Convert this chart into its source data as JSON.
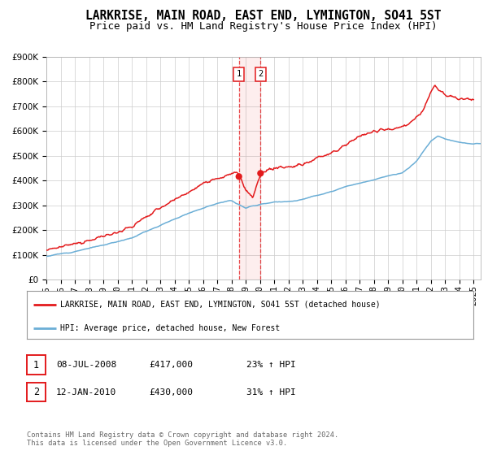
{
  "title": "LARKRISE, MAIN ROAD, EAST END, LYMINGTON, SO41 5ST",
  "subtitle": "Price paid vs. HM Land Registry's House Price Index (HPI)",
  "ylim": [
    0,
    900000
  ],
  "xlim": [
    1995.0,
    2025.5
  ],
  "yticks": [
    0,
    100000,
    200000,
    300000,
    400000,
    500000,
    600000,
    700000,
    800000,
    900000
  ],
  "ytick_labels": [
    "£0",
    "£100K",
    "£200K",
    "£300K",
    "£400K",
    "£500K",
    "£600K",
    "£700K",
    "£800K",
    "£900K"
  ],
  "xticks": [
    1995,
    1996,
    1997,
    1998,
    1999,
    2000,
    2001,
    2002,
    2003,
    2004,
    2005,
    2006,
    2007,
    2008,
    2009,
    2010,
    2011,
    2012,
    2013,
    2014,
    2015,
    2016,
    2017,
    2018,
    2019,
    2020,
    2021,
    2022,
    2023,
    2024,
    2025
  ],
  "hpi_color": "#6baed6",
  "price_color": "#e31a1c",
  "point1_x": 2008.52,
  "point1_y": 417000,
  "point2_x": 2010.04,
  "point2_y": 430000,
  "vline1_x": 2008.52,
  "vline2_x": 2010.04,
  "shade_alpha": 0.07,
  "legend_label_price": "LARKRISE, MAIN ROAD, EAST END, LYMINGTON, SO41 5ST (detached house)",
  "legend_label_hpi": "HPI: Average price, detached house, New Forest",
  "table_rows": [
    {
      "num": "1",
      "date": "08-JUL-2008",
      "price": "£417,000",
      "hpi": "23% ↑ HPI"
    },
    {
      "num": "2",
      "date": "12-JAN-2010",
      "price": "£430,000",
      "hpi": "31% ↑ HPI"
    }
  ],
  "footnote": "Contains HM Land Registry data © Crown copyright and database right 2024.\nThis data is licensed under the Open Government Licence v3.0.",
  "bg_color": "#ffffff",
  "grid_color": "#cccccc",
  "title_fontsize": 10.5,
  "subtitle_fontsize": 9,
  "tick_fontsize": 7.5
}
